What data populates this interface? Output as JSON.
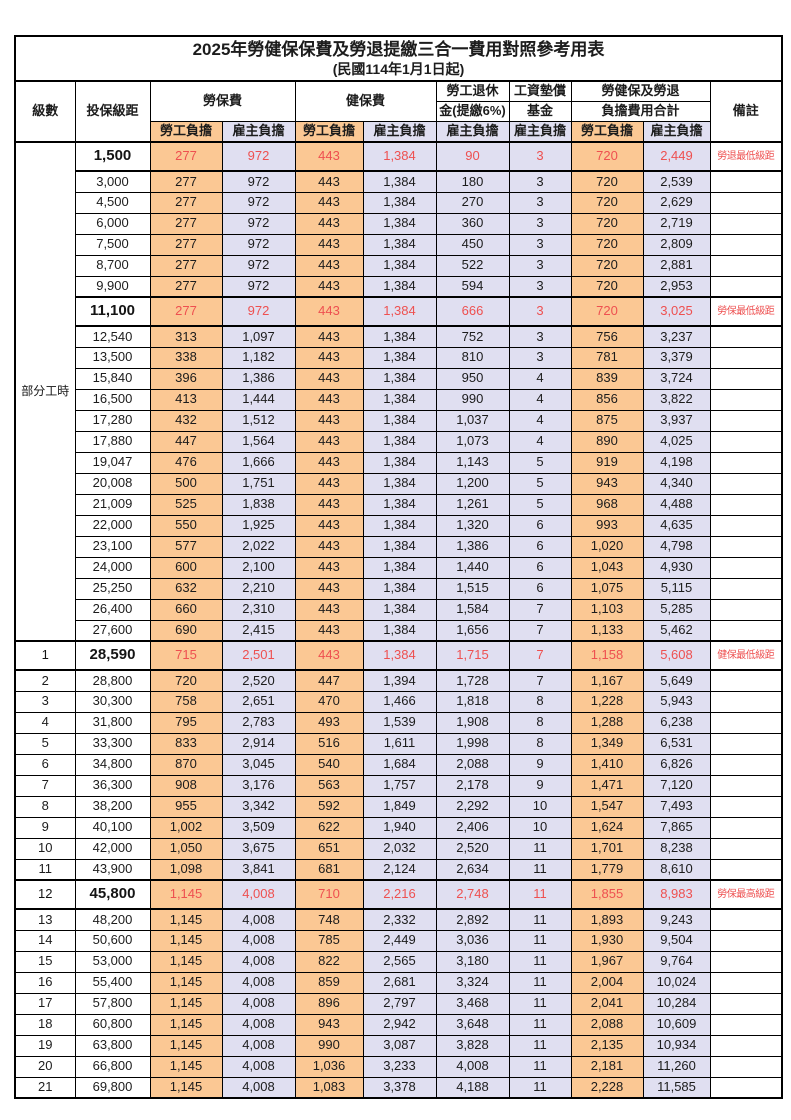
{
  "title": "2025年勞健保保費及勞退提繳三合一費用對照參考用表",
  "subtitle": "(民國114年1月1日起)",
  "header": {
    "level": "級數",
    "bracket": "投保級距",
    "labor_insurance": "勞保費",
    "health_insurance": "健保費",
    "pension_line1": "勞工退休",
    "pension_line2": "金(提繳6%)",
    "wage_fund_line1": "工資墊償",
    "wage_fund_line2": "基金",
    "total_line1": "勞健保及勞退",
    "total_line2": "負擔費用合計",
    "remark": "備註",
    "employee": "勞工負擔",
    "employer": "雇主負擔"
  },
  "part_time_label": "部分工時",
  "part_time_rowspan": 23,
  "colors": {
    "employee_bg": "#fbc894",
    "employer_bg": "#e0dff1",
    "highlight_text": "#ee5050",
    "border": "#000000"
  },
  "rows": [
    {
      "level": "",
      "bracket": "1,500",
      "li_emp": "277",
      "li_er": "972",
      "hi_emp": "443",
      "hi_er": "1,384",
      "pension": "90",
      "fund": "3",
      "tot_emp": "720",
      "tot_er": "2,449",
      "remark": "勞退最低級距",
      "highlight": true
    },
    {
      "level": "",
      "bracket": "3,000",
      "li_emp": "277",
      "li_er": "972",
      "hi_emp": "443",
      "hi_er": "1,384",
      "pension": "180",
      "fund": "3",
      "tot_emp": "720",
      "tot_er": "2,539",
      "remark": "",
      "highlight": false
    },
    {
      "level": "",
      "bracket": "4,500",
      "li_emp": "277",
      "li_er": "972",
      "hi_emp": "443",
      "hi_er": "1,384",
      "pension": "270",
      "fund": "3",
      "tot_emp": "720",
      "tot_er": "2,629",
      "remark": "",
      "highlight": false
    },
    {
      "level": "",
      "bracket": "6,000",
      "li_emp": "277",
      "li_er": "972",
      "hi_emp": "443",
      "hi_er": "1,384",
      "pension": "360",
      "fund": "3",
      "tot_emp": "720",
      "tot_er": "2,719",
      "remark": "",
      "highlight": false
    },
    {
      "level": "",
      "bracket": "7,500",
      "li_emp": "277",
      "li_er": "972",
      "hi_emp": "443",
      "hi_er": "1,384",
      "pension": "450",
      "fund": "3",
      "tot_emp": "720",
      "tot_er": "2,809",
      "remark": "",
      "highlight": false
    },
    {
      "level": "",
      "bracket": "8,700",
      "li_emp": "277",
      "li_er": "972",
      "hi_emp": "443",
      "hi_er": "1,384",
      "pension": "522",
      "fund": "3",
      "tot_emp": "720",
      "tot_er": "2,881",
      "remark": "",
      "highlight": false
    },
    {
      "level": "",
      "bracket": "9,900",
      "li_emp": "277",
      "li_er": "972",
      "hi_emp": "443",
      "hi_er": "1,384",
      "pension": "594",
      "fund": "3",
      "tot_emp": "720",
      "tot_er": "2,953",
      "remark": "",
      "highlight": false
    },
    {
      "level": "",
      "bracket": "11,100",
      "li_emp": "277",
      "li_er": "972",
      "hi_emp": "443",
      "hi_er": "1,384",
      "pension": "666",
      "fund": "3",
      "tot_emp": "720",
      "tot_er": "3,025",
      "remark": "勞保最低級距",
      "highlight": true
    },
    {
      "level": "",
      "bracket": "12,540",
      "li_emp": "313",
      "li_er": "1,097",
      "hi_emp": "443",
      "hi_er": "1,384",
      "pension": "752",
      "fund": "3",
      "tot_emp": "756",
      "tot_er": "3,237",
      "remark": "",
      "highlight": false
    },
    {
      "level": "",
      "bracket": "13,500",
      "li_emp": "338",
      "li_er": "1,182",
      "hi_emp": "443",
      "hi_er": "1,384",
      "pension": "810",
      "fund": "3",
      "tot_emp": "781",
      "tot_er": "3,379",
      "remark": "",
      "highlight": false
    },
    {
      "level": "",
      "bracket": "15,840",
      "li_emp": "396",
      "li_er": "1,386",
      "hi_emp": "443",
      "hi_er": "1,384",
      "pension": "950",
      "fund": "4",
      "tot_emp": "839",
      "tot_er": "3,724",
      "remark": "",
      "highlight": false
    },
    {
      "level": "",
      "bracket": "16,500",
      "li_emp": "413",
      "li_er": "1,444",
      "hi_emp": "443",
      "hi_er": "1,384",
      "pension": "990",
      "fund": "4",
      "tot_emp": "856",
      "tot_er": "3,822",
      "remark": "",
      "highlight": false
    },
    {
      "level": "",
      "bracket": "17,280",
      "li_emp": "432",
      "li_er": "1,512",
      "hi_emp": "443",
      "hi_er": "1,384",
      "pension": "1,037",
      "fund": "4",
      "tot_emp": "875",
      "tot_er": "3,937",
      "remark": "",
      "highlight": false
    },
    {
      "level": "",
      "bracket": "17,880",
      "li_emp": "447",
      "li_er": "1,564",
      "hi_emp": "443",
      "hi_er": "1,384",
      "pension": "1,073",
      "fund": "4",
      "tot_emp": "890",
      "tot_er": "4,025",
      "remark": "",
      "highlight": false
    },
    {
      "level": "",
      "bracket": "19,047",
      "li_emp": "476",
      "li_er": "1,666",
      "hi_emp": "443",
      "hi_er": "1,384",
      "pension": "1,143",
      "fund": "5",
      "tot_emp": "919",
      "tot_er": "4,198",
      "remark": "",
      "highlight": false
    },
    {
      "level": "",
      "bracket": "20,008",
      "li_emp": "500",
      "li_er": "1,751",
      "hi_emp": "443",
      "hi_er": "1,384",
      "pension": "1,200",
      "fund": "5",
      "tot_emp": "943",
      "tot_er": "4,340",
      "remark": "",
      "highlight": false
    },
    {
      "level": "",
      "bracket": "21,009",
      "li_emp": "525",
      "li_er": "1,838",
      "hi_emp": "443",
      "hi_er": "1,384",
      "pension": "1,261",
      "fund": "5",
      "tot_emp": "968",
      "tot_er": "4,488",
      "remark": "",
      "highlight": false
    },
    {
      "level": "",
      "bracket": "22,000",
      "li_emp": "550",
      "li_er": "1,925",
      "hi_emp": "443",
      "hi_er": "1,384",
      "pension": "1,320",
      "fund": "6",
      "tot_emp": "993",
      "tot_er": "4,635",
      "remark": "",
      "highlight": false
    },
    {
      "level": "",
      "bracket": "23,100",
      "li_emp": "577",
      "li_er": "2,022",
      "hi_emp": "443",
      "hi_er": "1,384",
      "pension": "1,386",
      "fund": "6",
      "tot_emp": "1,020",
      "tot_er": "4,798",
      "remark": "",
      "highlight": false
    },
    {
      "level": "",
      "bracket": "24,000",
      "li_emp": "600",
      "li_er": "2,100",
      "hi_emp": "443",
      "hi_er": "1,384",
      "pension": "1,440",
      "fund": "6",
      "tot_emp": "1,043",
      "tot_er": "4,930",
      "remark": "",
      "highlight": false
    },
    {
      "level": "",
      "bracket": "25,250",
      "li_emp": "632",
      "li_er": "2,210",
      "hi_emp": "443",
      "hi_er": "1,384",
      "pension": "1,515",
      "fund": "6",
      "tot_emp": "1,075",
      "tot_er": "5,115",
      "remark": "",
      "highlight": false
    },
    {
      "level": "",
      "bracket": "26,400",
      "li_emp": "660",
      "li_er": "2,310",
      "hi_emp": "443",
      "hi_er": "1,384",
      "pension": "1,584",
      "fund": "7",
      "tot_emp": "1,103",
      "tot_er": "5,285",
      "remark": "",
      "highlight": false
    },
    {
      "level": "",
      "bracket": "27,600",
      "li_emp": "690",
      "li_er": "2,415",
      "hi_emp": "443",
      "hi_er": "1,384",
      "pension": "1,656",
      "fund": "7",
      "tot_emp": "1,133",
      "tot_er": "5,462",
      "remark": "",
      "highlight": false
    },
    {
      "level": "1",
      "bracket": "28,590",
      "li_emp": "715",
      "li_er": "2,501",
      "hi_emp": "443",
      "hi_er": "1,384",
      "pension": "1,715",
      "fund": "7",
      "tot_emp": "1,158",
      "tot_er": "5,608",
      "remark": "健保最低級距",
      "highlight": true
    },
    {
      "level": "2",
      "bracket": "28,800",
      "li_emp": "720",
      "li_er": "2,520",
      "hi_emp": "447",
      "hi_er": "1,394",
      "pension": "1,728",
      "fund": "7",
      "tot_emp": "1,167",
      "tot_er": "5,649",
      "remark": "",
      "highlight": false
    },
    {
      "level": "3",
      "bracket": "30,300",
      "li_emp": "758",
      "li_er": "2,651",
      "hi_emp": "470",
      "hi_er": "1,466",
      "pension": "1,818",
      "fund": "8",
      "tot_emp": "1,228",
      "tot_er": "5,943",
      "remark": "",
      "highlight": false
    },
    {
      "level": "4",
      "bracket": "31,800",
      "li_emp": "795",
      "li_er": "2,783",
      "hi_emp": "493",
      "hi_er": "1,539",
      "pension": "1,908",
      "fund": "8",
      "tot_emp": "1,288",
      "tot_er": "6,238",
      "remark": "",
      "highlight": false
    },
    {
      "level": "5",
      "bracket": "33,300",
      "li_emp": "833",
      "li_er": "2,914",
      "hi_emp": "516",
      "hi_er": "1,611",
      "pension": "1,998",
      "fund": "8",
      "tot_emp": "1,349",
      "tot_er": "6,531",
      "remark": "",
      "highlight": false
    },
    {
      "level": "6",
      "bracket": "34,800",
      "li_emp": "870",
      "li_er": "3,045",
      "hi_emp": "540",
      "hi_er": "1,684",
      "pension": "2,088",
      "fund": "9",
      "tot_emp": "1,410",
      "tot_er": "6,826",
      "remark": "",
      "highlight": false
    },
    {
      "level": "7",
      "bracket": "36,300",
      "li_emp": "908",
      "li_er": "3,176",
      "hi_emp": "563",
      "hi_er": "1,757",
      "pension": "2,178",
      "fund": "9",
      "tot_emp": "1,471",
      "tot_er": "7,120",
      "remark": "",
      "highlight": false
    },
    {
      "level": "8",
      "bracket": "38,200",
      "li_emp": "955",
      "li_er": "3,342",
      "hi_emp": "592",
      "hi_er": "1,849",
      "pension": "2,292",
      "fund": "10",
      "tot_emp": "1,547",
      "tot_er": "7,493",
      "remark": "",
      "highlight": false
    },
    {
      "level": "9",
      "bracket": "40,100",
      "li_emp": "1,002",
      "li_er": "3,509",
      "hi_emp": "622",
      "hi_er": "1,940",
      "pension": "2,406",
      "fund": "10",
      "tot_emp": "1,624",
      "tot_er": "7,865",
      "remark": "",
      "highlight": false
    },
    {
      "level": "10",
      "bracket": "42,000",
      "li_emp": "1,050",
      "li_er": "3,675",
      "hi_emp": "651",
      "hi_er": "2,032",
      "pension": "2,520",
      "fund": "11",
      "tot_emp": "1,701",
      "tot_er": "8,238",
      "remark": "",
      "highlight": false
    },
    {
      "level": "11",
      "bracket": "43,900",
      "li_emp": "1,098",
      "li_er": "3,841",
      "hi_emp": "681",
      "hi_er": "2,124",
      "pension": "2,634",
      "fund": "11",
      "tot_emp": "1,779",
      "tot_er": "8,610",
      "remark": "",
      "highlight": false
    },
    {
      "level": "12",
      "bracket": "45,800",
      "li_emp": "1,145",
      "li_er": "4,008",
      "hi_emp": "710",
      "hi_er": "2,216",
      "pension": "2,748",
      "fund": "11",
      "tot_emp": "1,855",
      "tot_er": "8,983",
      "remark": "勞保最高級距",
      "highlight": true
    },
    {
      "level": "13",
      "bracket": "48,200",
      "li_emp": "1,145",
      "li_er": "4,008",
      "hi_emp": "748",
      "hi_er": "2,332",
      "pension": "2,892",
      "fund": "11",
      "tot_emp": "1,893",
      "tot_er": "9,243",
      "remark": "",
      "highlight": false
    },
    {
      "level": "14",
      "bracket": "50,600",
      "li_emp": "1,145",
      "li_er": "4,008",
      "hi_emp": "785",
      "hi_er": "2,449",
      "pension": "3,036",
      "fund": "11",
      "tot_emp": "1,930",
      "tot_er": "9,504",
      "remark": "",
      "highlight": false
    },
    {
      "level": "15",
      "bracket": "53,000",
      "li_emp": "1,145",
      "li_er": "4,008",
      "hi_emp": "822",
      "hi_er": "2,565",
      "pension": "3,180",
      "fund": "11",
      "tot_emp": "1,967",
      "tot_er": "9,764",
      "remark": "",
      "highlight": false
    },
    {
      "level": "16",
      "bracket": "55,400",
      "li_emp": "1,145",
      "li_er": "4,008",
      "hi_emp": "859",
      "hi_er": "2,681",
      "pension": "3,324",
      "fund": "11",
      "tot_emp": "2,004",
      "tot_er": "10,024",
      "remark": "",
      "highlight": false
    },
    {
      "level": "17",
      "bracket": "57,800",
      "li_emp": "1,145",
      "li_er": "4,008",
      "hi_emp": "896",
      "hi_er": "2,797",
      "pension": "3,468",
      "fund": "11",
      "tot_emp": "2,041",
      "tot_er": "10,284",
      "remark": "",
      "highlight": false
    },
    {
      "level": "18",
      "bracket": "60,800",
      "li_emp": "1,145",
      "li_er": "4,008",
      "hi_emp": "943",
      "hi_er": "2,942",
      "pension": "3,648",
      "fund": "11",
      "tot_emp": "2,088",
      "tot_er": "10,609",
      "remark": "",
      "highlight": false
    },
    {
      "level": "19",
      "bracket": "63,800",
      "li_emp": "1,145",
      "li_er": "4,008",
      "hi_emp": "990",
      "hi_er": "3,087",
      "pension": "3,828",
      "fund": "11",
      "tot_emp": "2,135",
      "tot_er": "10,934",
      "remark": "",
      "highlight": false
    },
    {
      "level": "20",
      "bracket": "66,800",
      "li_emp": "1,145",
      "li_er": "4,008",
      "hi_emp": "1,036",
      "hi_er": "3,233",
      "pension": "4,008",
      "fund": "11",
      "tot_emp": "2,181",
      "tot_er": "11,260",
      "remark": "",
      "highlight": false
    },
    {
      "level": "21",
      "bracket": "69,800",
      "li_emp": "1,145",
      "li_er": "4,008",
      "hi_emp": "1,083",
      "hi_er": "3,378",
      "pension": "4,188",
      "fund": "11",
      "tot_emp": "2,228",
      "tot_er": "11,585",
      "remark": "",
      "highlight": false
    }
  ]
}
